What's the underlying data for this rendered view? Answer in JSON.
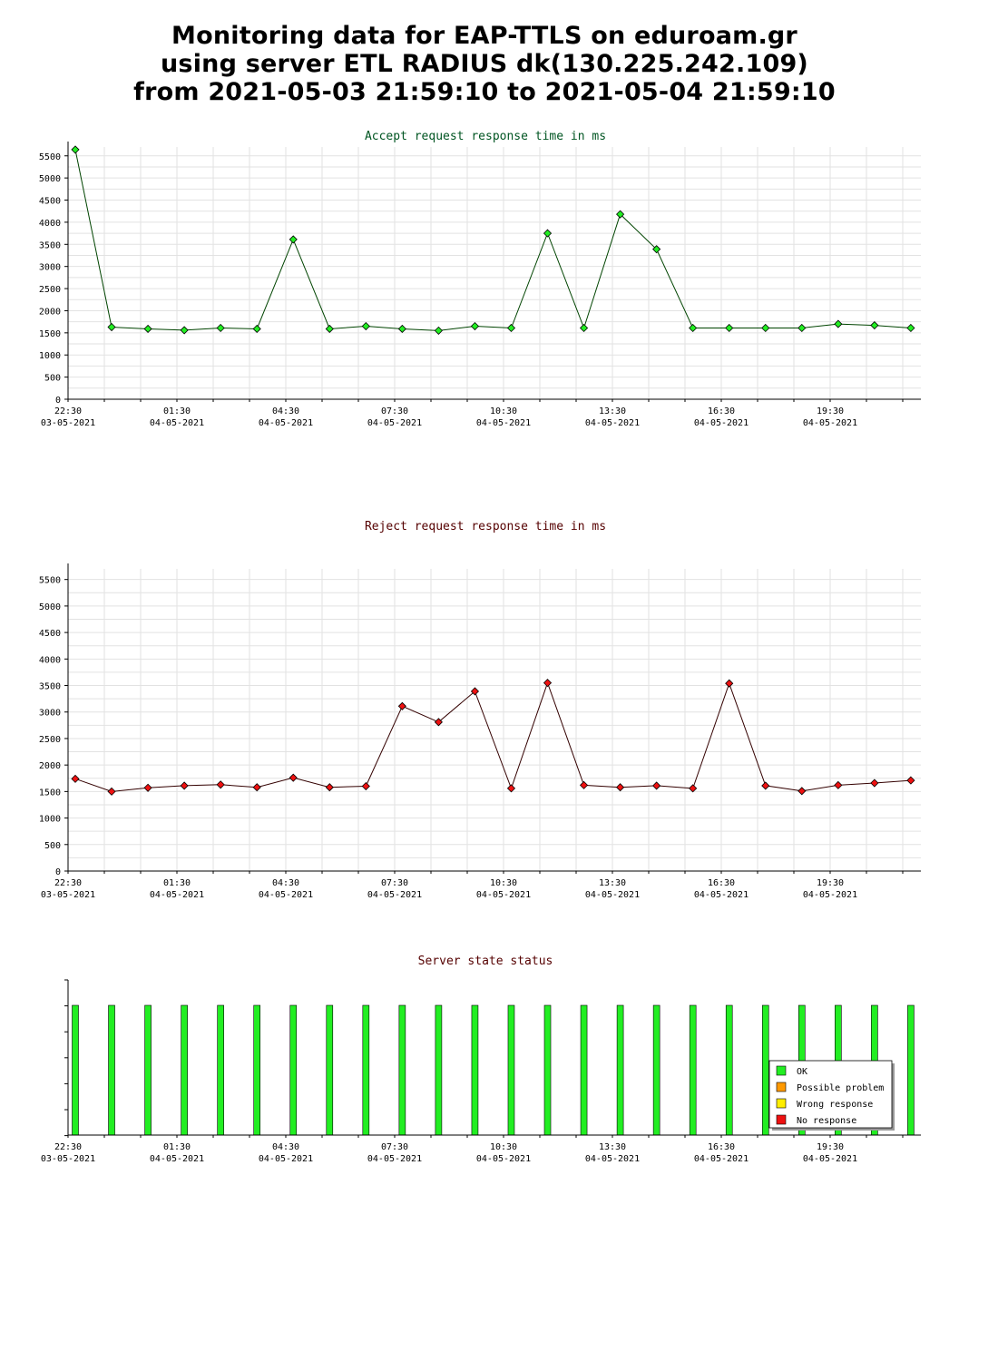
{
  "page": {
    "title_lines": [
      "Monitoring data for EAP-TTLS on eduroam.gr",
      "using server ETL RADIUS dk(130.225.242.109)",
      "from 2021-05-03 21:59:10 to 2021-05-04 21:59:10"
    ]
  },
  "colors": {
    "ok": "#22ee22",
    "possible_problem": "#ff9900",
    "wrong_response": "#ffee00",
    "no_response": "#ee1111",
    "accept_line": "#004400",
    "accept_title": "#005522",
    "reject_line": "#330000",
    "reject_title": "#550000"
  },
  "x_axis": {
    "ticks": [
      {
        "time": "22:30",
        "date": "03-05-2021"
      },
      {
        "time": "01:30",
        "date": "04-05-2021"
      },
      {
        "time": "04:30",
        "date": "04-05-2021"
      },
      {
        "time": "07:30",
        "date": "04-05-2021"
      },
      {
        "time": "10:30",
        "date": "04-05-2021"
      },
      {
        "time": "13:30",
        "date": "04-05-2021"
      },
      {
        "time": "16:30",
        "date": "04-05-2021"
      },
      {
        "time": "19:30",
        "date": "04-05-2021"
      }
    ]
  },
  "chart_data": [
    {
      "type": "line",
      "title": "Accept request response time in ms",
      "ylim": [
        0,
        5700
      ],
      "yticks": [
        0,
        500,
        1000,
        1500,
        2000,
        2500,
        3000,
        3500,
        4000,
        4500,
        5000,
        5500
      ],
      "grid": true,
      "series": [
        {
          "values": [
            5640,
            1630,
            1590,
            1560,
            1610,
            1590,
            3610,
            1590,
            1650,
            1590,
            1550,
            1650,
            1610,
            3750,
            1610,
            4180,
            3390,
            1610,
            1610,
            1610,
            1610,
            1700,
            1670,
            1610
          ]
        }
      ]
    },
    {
      "type": "line",
      "title": "Reject request response time in ms",
      "ylim": [
        0,
        5700
      ],
      "yticks": [
        0,
        500,
        1000,
        1500,
        2000,
        2500,
        3000,
        3500,
        4000,
        4500,
        5000,
        5500
      ],
      "grid": true,
      "series": [
        {
          "values": [
            1740,
            1500,
            1570,
            1610,
            1630,
            1580,
            1760,
            1580,
            1600,
            3110,
            2810,
            3390,
            1560,
            3550,
            1620,
            1580,
            1610,
            1560,
            3540,
            1610,
            1510,
            1620,
            1660,
            1710
          ]
        }
      ]
    },
    {
      "type": "bar",
      "title": "Server state status",
      "grid": false,
      "legend_position": "bottom-right",
      "legend": [
        "OK",
        "Possible problem",
        "Wrong response",
        "No response"
      ],
      "values": [
        "OK",
        "OK",
        "OK",
        "OK",
        "OK",
        "OK",
        "OK",
        "OK",
        "OK",
        "OK",
        "OK",
        "OK",
        "OK",
        "OK",
        "OK",
        "OK",
        "OK",
        "OK",
        "OK",
        "OK",
        "OK",
        "OK",
        "OK",
        "OK"
      ]
    }
  ]
}
